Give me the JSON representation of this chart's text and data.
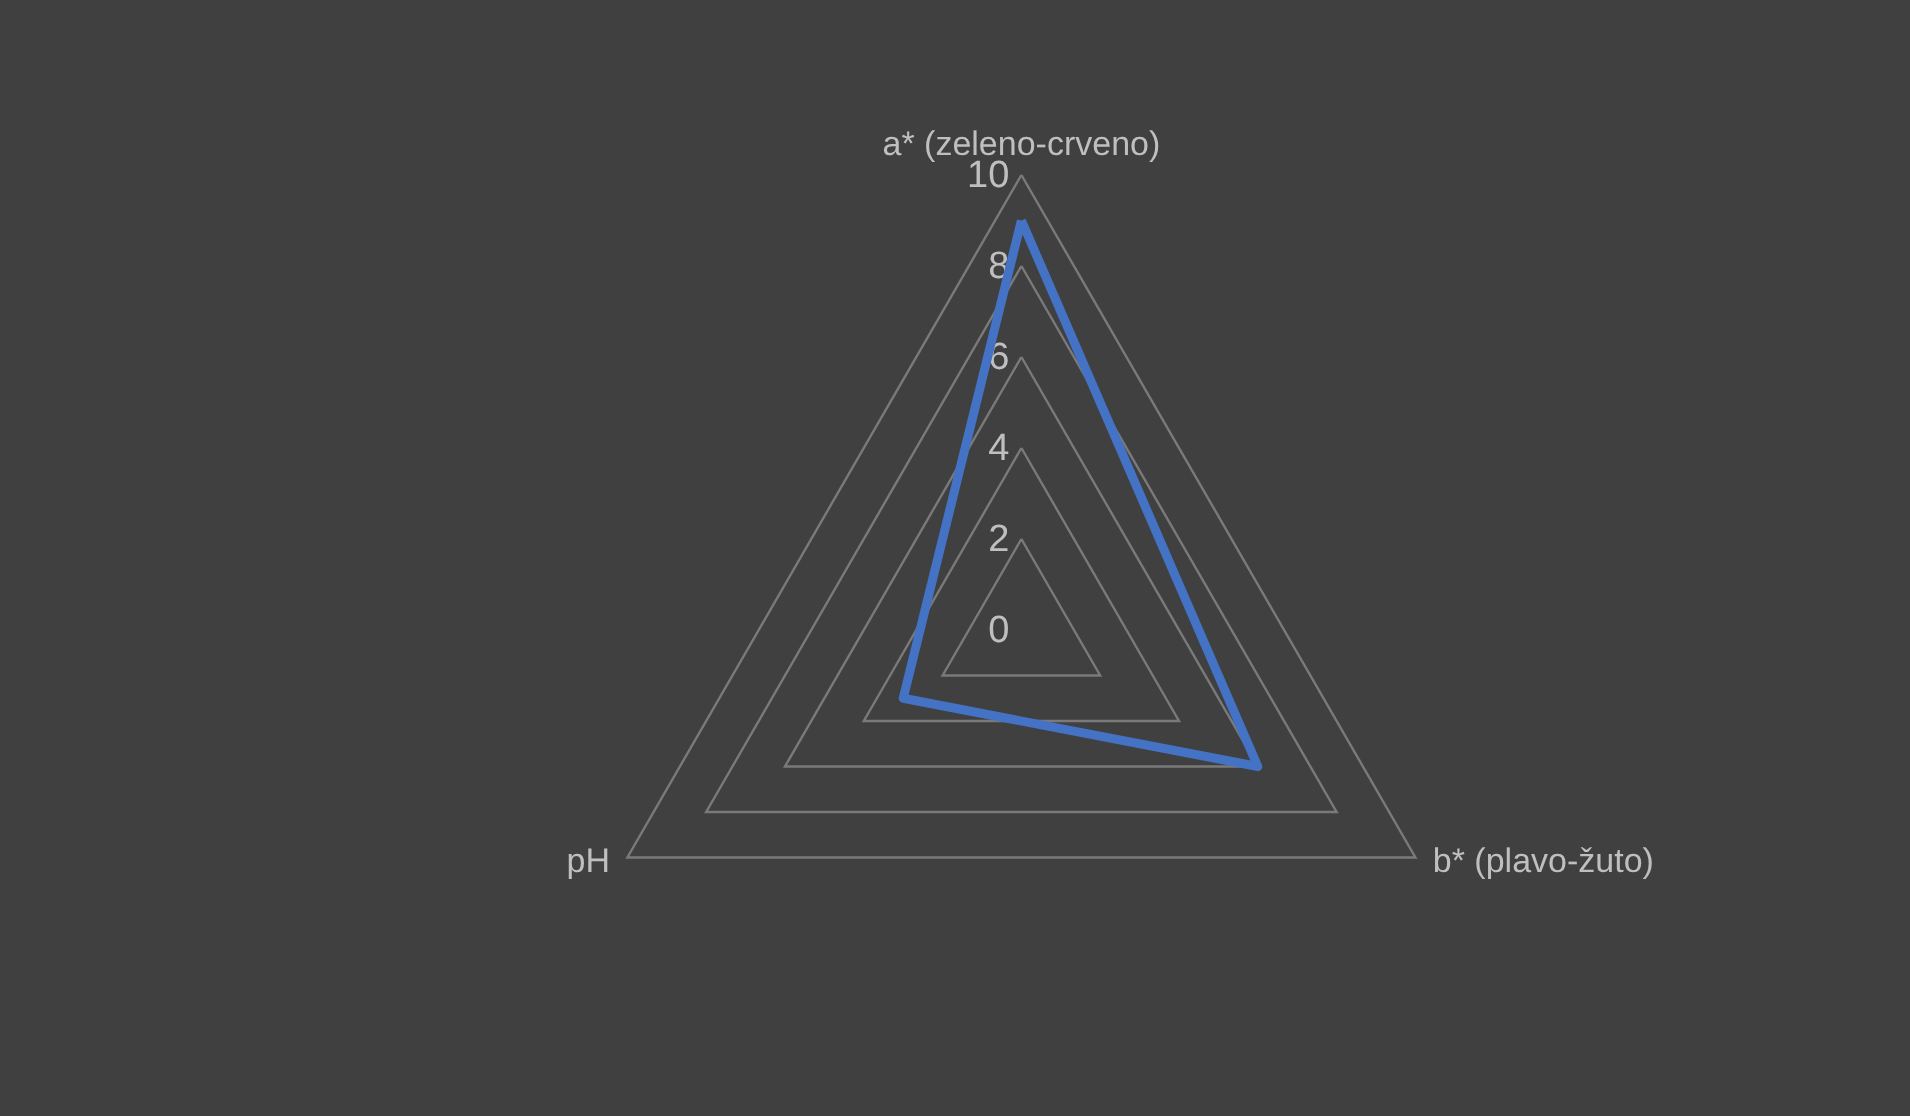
{
  "chart_data": {
    "type": "radar",
    "categories": [
      "a* (zeleno-crveno)",
      "b* (plavo-žuto)",
      "pH"
    ],
    "series": [
      {
        "color": "#4472c4",
        "values": [
          9,
          6,
          3
        ]
      }
    ],
    "ylim": [
      0,
      10
    ],
    "yticks": [
      0,
      2,
      4,
      6,
      8,
      10
    ],
    "grid": true,
    "marker": "none",
    "line_style": "solid"
  }
}
